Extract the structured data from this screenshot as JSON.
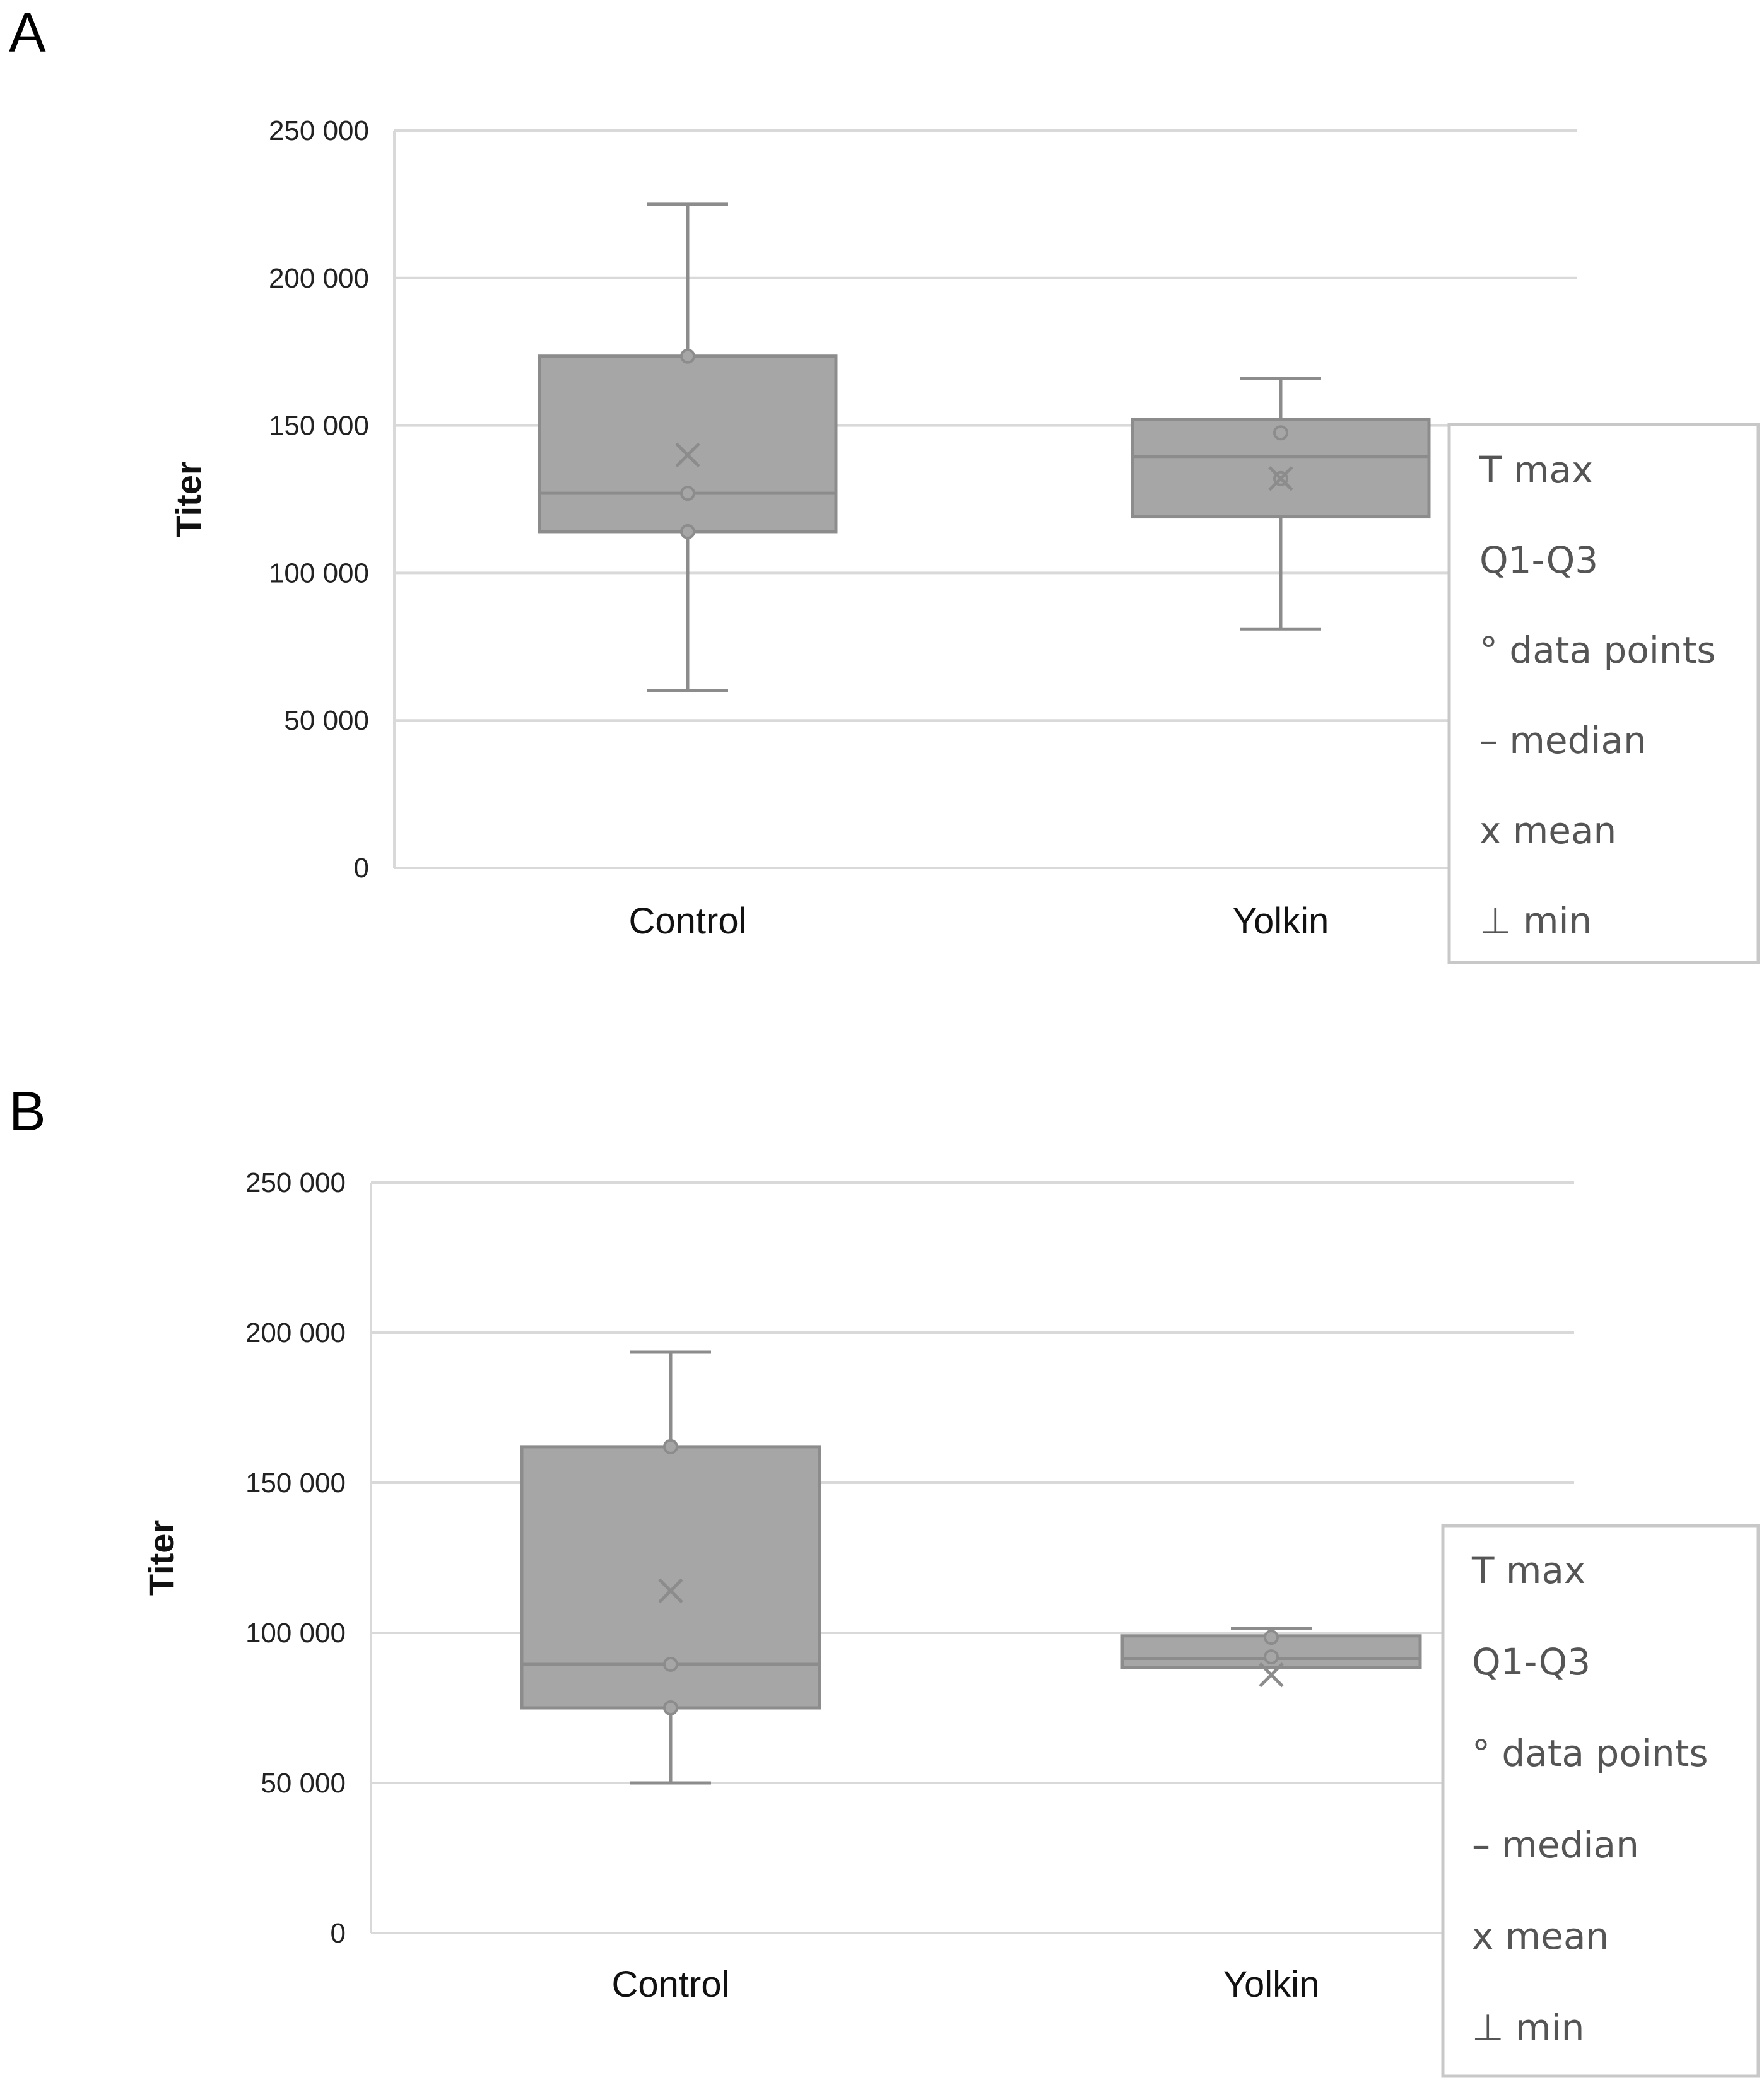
{
  "chart_data": [
    {
      "panel": "A",
      "type": "box",
      "title": "",
      "xlabel": "",
      "ylabel": "Titer",
      "ylim": [
        0,
        250000
      ],
      "yticks": [
        0,
        50000,
        100000,
        150000,
        200000,
        250000
      ],
      "ytick_labels": [
        "0",
        "50 000",
        "100 000",
        "150 000",
        "200 000",
        "250 000"
      ],
      "grid": true,
      "categories": [
        "Control",
        "Yolkin"
      ],
      "series": [
        {
          "name": "Control",
          "min": 60000,
          "q1": 114000,
          "median": 127000,
          "q3": 173500,
          "max": 225000,
          "mean": 140000,
          "points": [
            114000,
            127000,
            173500
          ]
        },
        {
          "name": "Yolkin",
          "min": 81000,
          "q1": 119000,
          "median": 139500,
          "q3": 152000,
          "max": 166000,
          "mean": 132000,
          "points": [
            132000,
            147500
          ]
        }
      ],
      "legend": {
        "position": "right",
        "items": [
          "T max",
          "Q1-Q3",
          "° data points",
          "– median",
          "x mean",
          "⊥ min"
        ]
      }
    },
    {
      "panel": "B",
      "type": "box",
      "title": "",
      "xlabel": "",
      "ylabel": "Titer",
      "ylim": [
        0,
        250000
      ],
      "yticks": [
        0,
        50000,
        100000,
        150000,
        200000,
        250000
      ],
      "ytick_labels": [
        "0",
        "50 000",
        "100 000",
        "150 000",
        "200 000",
        "250 000"
      ],
      "grid": true,
      "categories": [
        "Control",
        "Yolkin"
      ],
      "series": [
        {
          "name": "Control",
          "min": 50000,
          "q1": 75000,
          "median": 89500,
          "q3": 162000,
          "max": 193500,
          "mean": 114000,
          "points": [
            75000,
            89500,
            162000
          ]
        },
        {
          "name": "Yolkin",
          "min": 88500,
          "q1": 88500,
          "median": 91500,
          "q3": 99000,
          "max": 101500,
          "mean": 86000,
          "points": [
            92000,
            98500
          ]
        }
      ],
      "legend": {
        "position": "right",
        "items": [
          "T max",
          "Q1-Q3",
          "° data points",
          "– median",
          "x mean",
          "⊥ min"
        ]
      }
    }
  ]
}
